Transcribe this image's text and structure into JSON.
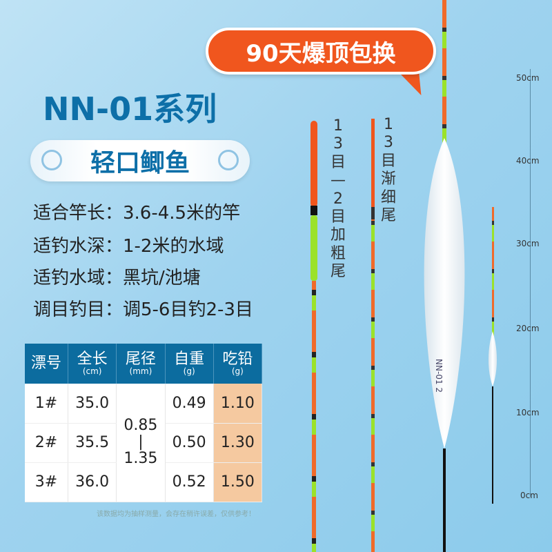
{
  "promo_badge": "90天爆顶包换",
  "series_title": "NN-01系列",
  "category": "轻口鲫鱼",
  "specs": [
    "适合竿长：3.6-4.5米的竿",
    "适钓水深：1-2米的水域",
    "适钓水域：黑坑/池塘",
    "调目钓目：调5-6目钓2-3目"
  ],
  "float_labels": {
    "thick": "13目—2目加粗尾",
    "thin": "13目渐细尾"
  },
  "float_marking": "NN-01  2",
  "table": {
    "headers": [
      {
        "t": "漂号",
        "u": ""
      },
      {
        "t": "全长",
        "u": "(cm)"
      },
      {
        "t": "尾径",
        "u": "(mm)"
      },
      {
        "t": "自重",
        "u": "(g)"
      },
      {
        "t": "吃铅",
        "u": "(g)"
      }
    ],
    "rows": [
      [
        "1#",
        "35.0",
        "0.49",
        "1.10"
      ],
      [
        "2#",
        "35.5",
        "0.50",
        "1.30"
      ],
      [
        "3#",
        "36.0",
        "0.52",
        "1.50"
      ]
    ],
    "tail_diameter": "0.85\n|\n1.35"
  },
  "note": "该数据均为抽样测量，会存在稍许误差，仅供参考！",
  "ruler": [
    "50cm",
    "40cm",
    "30cm",
    "20cm",
    "10cm",
    "0cm"
  ],
  "colors": {
    "accent": "#f0561e",
    "brand": "#0c6c9f",
    "lead": "#f5c9a0"
  }
}
